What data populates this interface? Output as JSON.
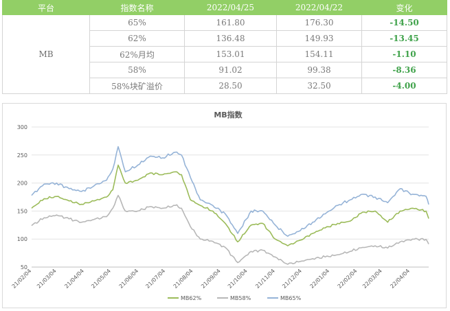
{
  "table": {
    "headers": [
      "平台",
      "指数名称",
      "2022/04/25",
      "2022/04/22",
      "变化"
    ],
    "platform": "MB",
    "rows": [
      {
        "name": "65%",
        "v1": "161.80",
        "v2": "176.30",
        "change": "-14.50"
      },
      {
        "name": "62%",
        "v1": "136.48",
        "v2": "149.93",
        "change": "-13.45"
      },
      {
        "name": "62%月均",
        "v1": "153.01",
        "v2": "154.11",
        "change": "-1.10"
      },
      {
        "name": "58%",
        "v1": "91.02",
        "v2": "99.38",
        "change": "-8.36"
      },
      {
        "name": "58%块矿溢价",
        "v1": "28.50",
        "v2": "32.50",
        "change": "-4.00"
      }
    ]
  },
  "chart_data": {
    "type": "line",
    "title": "MB指数",
    "xlabel": "",
    "ylabel": "",
    "ylim": [
      50,
      300
    ],
    "yticks": [
      50,
      100,
      150,
      200,
      250,
      300
    ],
    "xlim": [
      "2021-02-04",
      "2022-04-25"
    ],
    "xticks": [
      "21/02/04",
      "21/03/04",
      "21/04/04",
      "21/05/04",
      "21/06/04",
      "21/07/04",
      "21/08/04",
      "21/09/04",
      "21/10/04",
      "21/11/04",
      "21/12/04",
      "22/01/04",
      "22/02/04",
      "22/03/04",
      "22/04/04"
    ],
    "grid": true,
    "legend": "bottom",
    "dates": [
      "2021-02-04",
      "2021-02-18",
      "2021-03-04",
      "2021-03-18",
      "2021-04-01",
      "2021-04-15",
      "2021-04-29",
      "2021-05-06",
      "2021-05-12",
      "2021-05-20",
      "2021-06-03",
      "2021-06-17",
      "2021-07-01",
      "2021-07-15",
      "2021-07-22",
      "2021-08-01",
      "2021-08-12",
      "2021-08-26",
      "2021-09-09",
      "2021-09-23",
      "2021-10-08",
      "2021-10-21",
      "2021-11-04",
      "2021-11-18",
      "2021-12-02",
      "2021-12-16",
      "2021-12-30",
      "2022-01-13",
      "2022-01-27",
      "2022-02-10",
      "2022-02-24",
      "2022-03-10",
      "2022-03-24",
      "2022-04-07",
      "2022-04-22",
      "2022-04-25"
    ],
    "series": [
      {
        "name": "MB62%",
        "color": "#9bbb59",
        "values": [
          155,
          172,
          176,
          168,
          162,
          168,
          175,
          188,
          232,
          200,
          205,
          218,
          215,
          220,
          215,
          170,
          160,
          150,
          128,
          95,
          125,
          128,
          100,
          88,
          98,
          110,
          120,
          128,
          132,
          148,
          150,
          130,
          150,
          155,
          149.9,
          136.5
        ]
      },
      {
        "name": "MB58%",
        "color": "#b7b7b7",
        "values": [
          124,
          138,
          143,
          136,
          130,
          135,
          140,
          155,
          178,
          150,
          150,
          158,
          155,
          160,
          155,
          122,
          100,
          96,
          85,
          58,
          78,
          80,
          68,
          55,
          60,
          65,
          68,
          72,
          78,
          85,
          88,
          84,
          95,
          100,
          99.4,
          91
        ]
      },
      {
        "name": "MB65%",
        "color": "#95b3d7",
        "values": [
          178,
          198,
          200,
          190,
          185,
          195,
          205,
          225,
          265,
          220,
          232,
          248,
          245,
          255,
          250,
          210,
          170,
          160,
          145,
          110,
          150,
          150,
          125,
          105,
          115,
          130,
          145,
          160,
          170,
          180,
          175,
          165,
          190,
          180,
          176.3,
          161.8
        ]
      }
    ]
  }
}
